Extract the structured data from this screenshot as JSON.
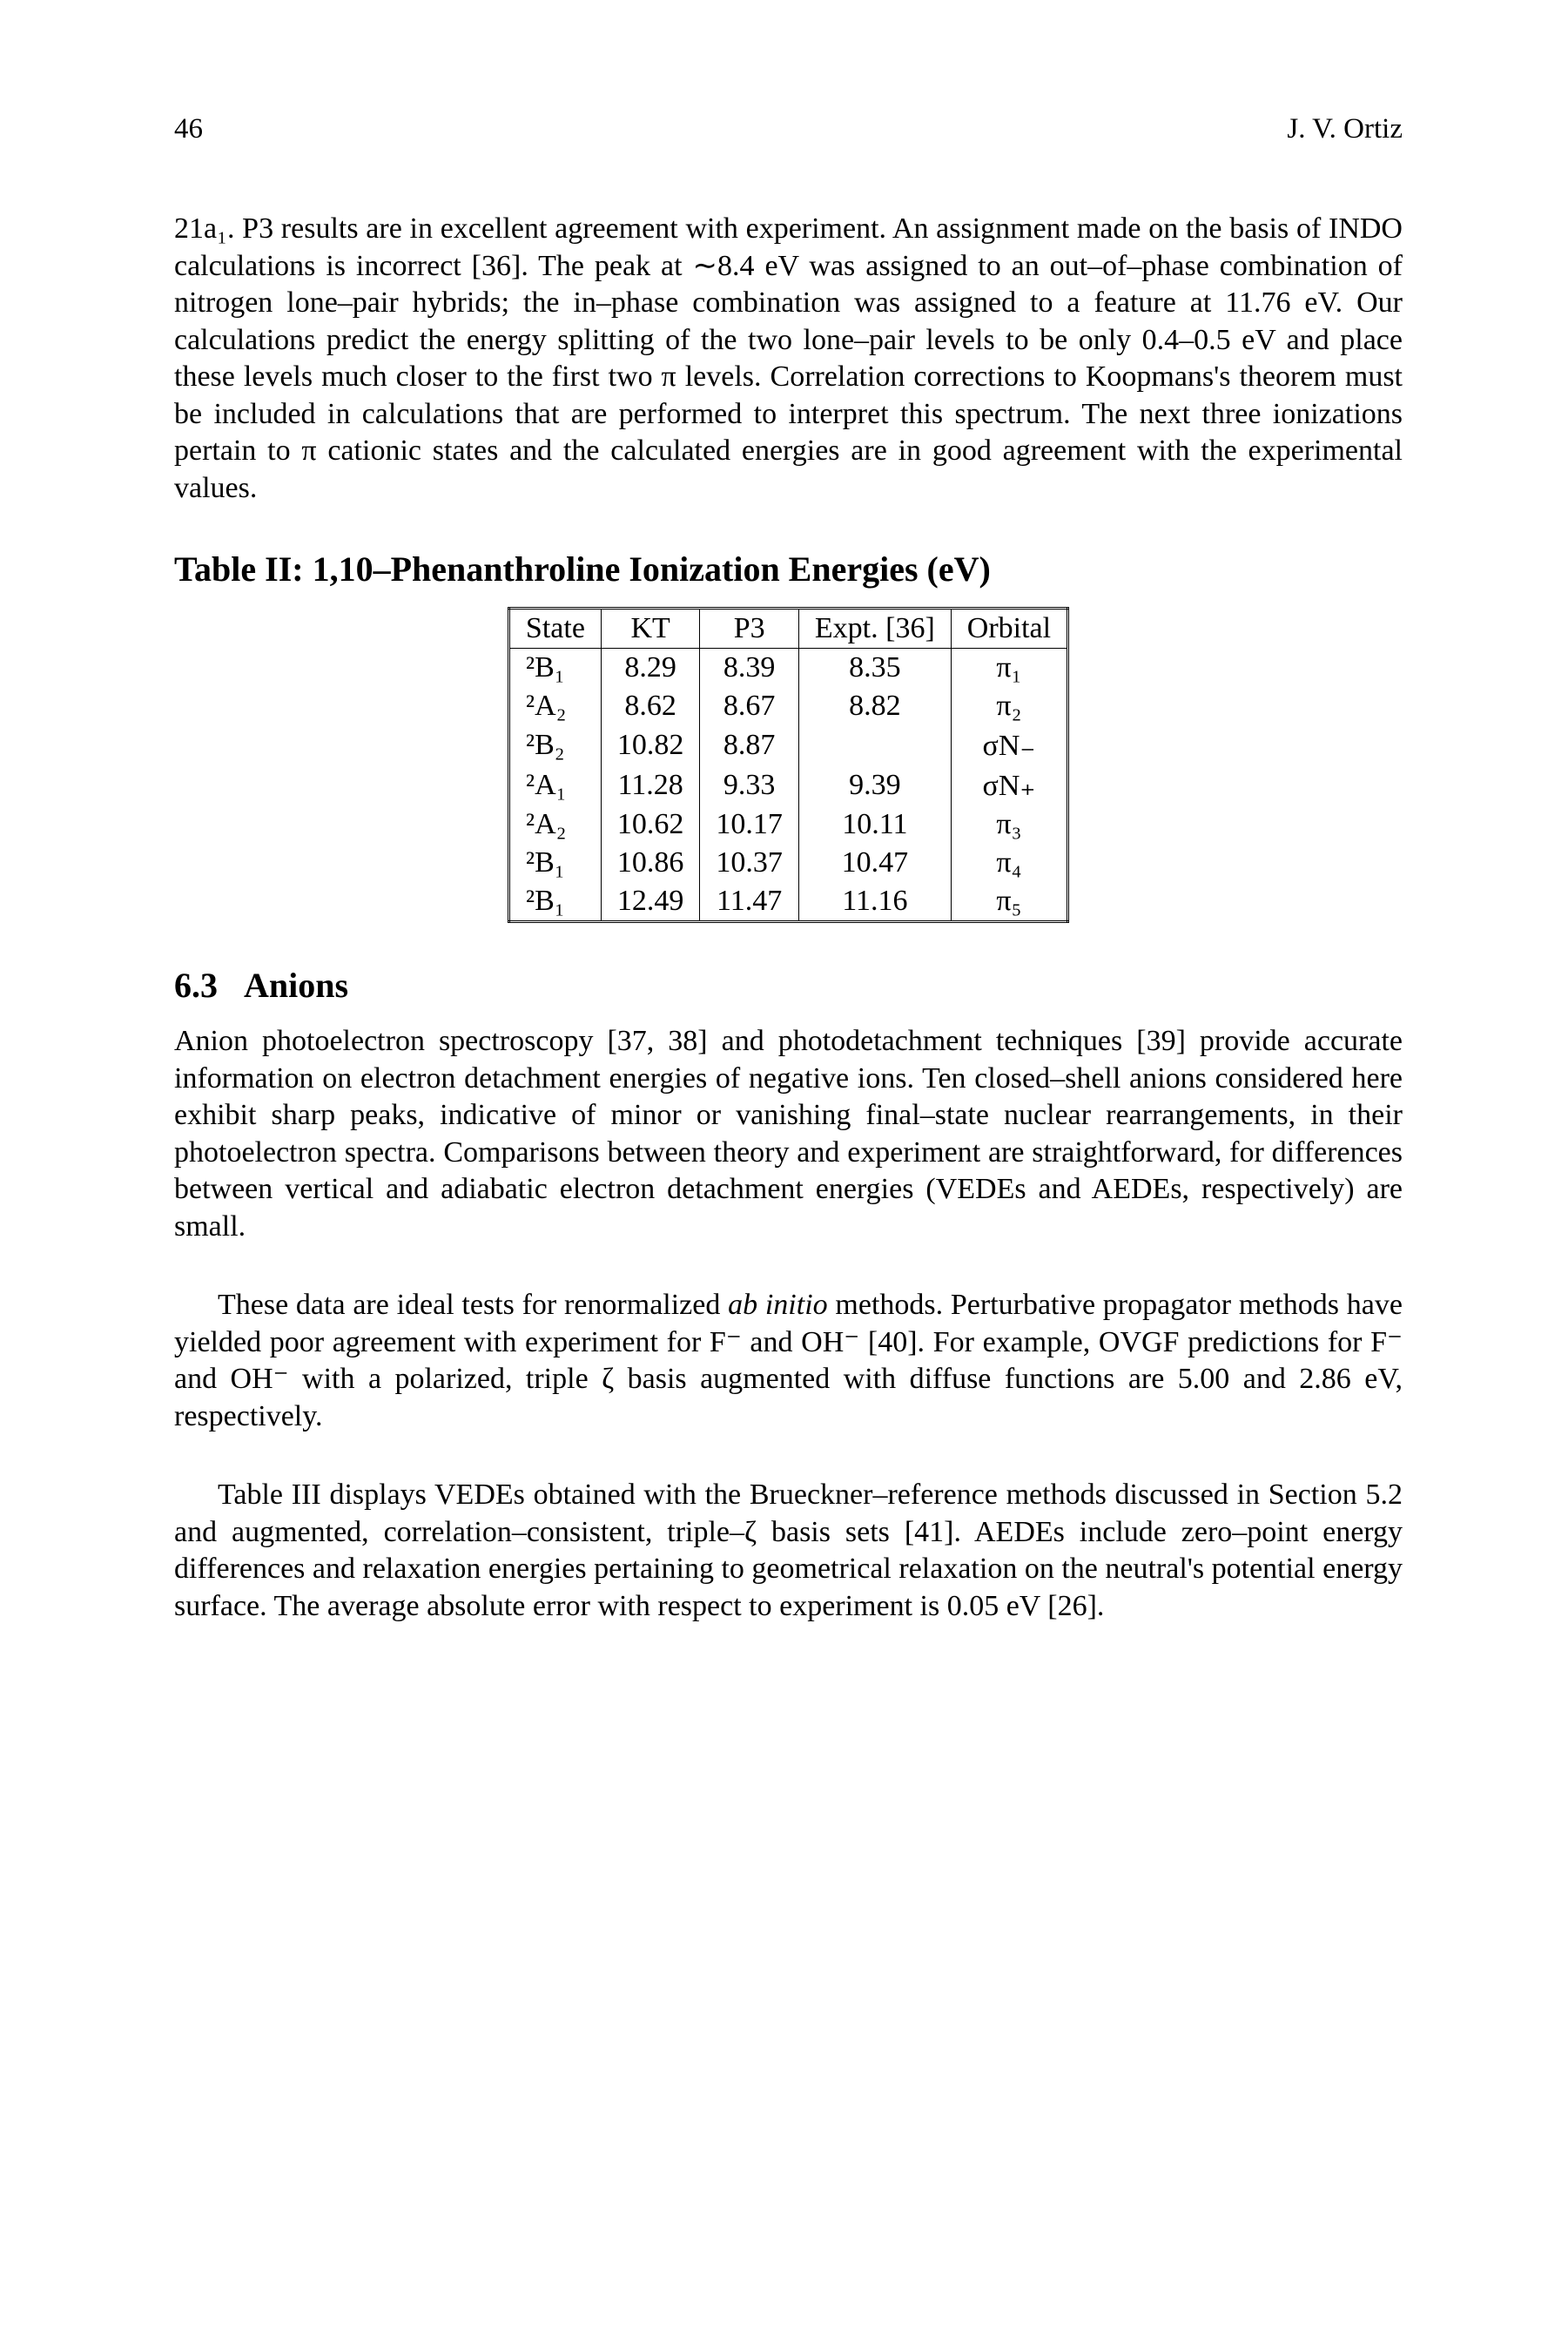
{
  "page": {
    "number": "46",
    "author": "J. V. Ortiz"
  },
  "paragraphs": {
    "p1": "21a₁. P3 results are in excellent agreement with experiment. An assignment made on the basis of INDO calculations is incorrect [36]. The peak at ∼8.4 eV was assigned to an out–of–phase combination of nitrogen lone–pair hybrids; the in–phase combination was assigned to a feature at 11.76 eV. Our calculations predict the energy splitting of the two lone–pair levels to be only 0.4–0.5 eV and place these levels much closer to the first two π levels. Correlation corrections to Koopmans's theorem must be included in calculations that are performed to interpret this spectrum. The next three ionizations pertain to π cationic states and the calculated energies are in good agreement with the experimental values.",
    "p2": "Anion photoelectron spectroscopy [37, 38] and photodetachment techniques [39] provide accurate information on electron detachment energies of negative ions. Ten closed–shell anions considered here exhibit sharp peaks, indicative of minor or vanishing final–state nuclear rearrangements, in their photoelectron spectra. Comparisons between theory and experiment are straightforward, for differences between vertical and adiabatic electron detachment energies (VEDEs and AEDEs, respectively) are small.",
    "p3_part1": "These data are ideal tests for renormalized ",
    "p3_italic": "ab initio",
    "p3_part2": " methods. Perturbative propagator methods have yielded poor agreement with experiment for F⁻ and OH⁻ [40]. For example, OVGF predictions for F⁻ and OH⁻ with a polarized, triple ζ basis augmented with diffuse functions are 5.00 and 2.86 eV, respectively.",
    "p4": "Table III displays VEDEs obtained with the Brueckner–reference methods discussed in Section 5.2 and augmented, correlation–consistent, triple–ζ basis sets [41]. AEDEs include zero–point energy differences and relaxation energies pertaining to geometrical relaxation on the neutral's potential energy surface. The average absolute error with respect to experiment is 0.05 eV [26]."
  },
  "table": {
    "title": "Table II: 1,10–Phenanthroline Ionization Energies (eV)",
    "headers": {
      "state": "State",
      "kt": "KT",
      "p3": "P3",
      "expt": "Expt. [36]",
      "orbital": "Orbital"
    },
    "rows": [
      {
        "state": "²B₁",
        "kt": "8.29",
        "p3": "8.39",
        "expt": "8.35",
        "orbital": "π₁"
      },
      {
        "state": "²A₂",
        "kt": "8.62",
        "p3": "8.67",
        "expt": "8.82",
        "orbital": "π₂"
      },
      {
        "state": "²B₂",
        "kt": "10.82",
        "p3": "8.87",
        "expt": "",
        "orbital": "σN₋"
      },
      {
        "state": "²A₁",
        "kt": "11.28",
        "p3": "9.33",
        "expt": "9.39",
        "orbital": "σN₊"
      },
      {
        "state": "²A₂",
        "kt": "10.62",
        "p3": "10.17",
        "expt": "10.11",
        "orbital": "π₃"
      },
      {
        "state": "²B₁",
        "kt": "10.86",
        "p3": "10.37",
        "expt": "10.47",
        "orbital": "π₄"
      },
      {
        "state": "²B₁",
        "kt": "12.49",
        "p3": "11.47",
        "expt": "11.16",
        "orbital": "π₅"
      }
    ]
  },
  "section": {
    "number": "6.3",
    "title": "Anions"
  },
  "styling": {
    "body_font_size": 34,
    "title_font_size": 40,
    "background_color": "#ffffff",
    "text_color": "#000000",
    "font_family": "Times New Roman"
  }
}
